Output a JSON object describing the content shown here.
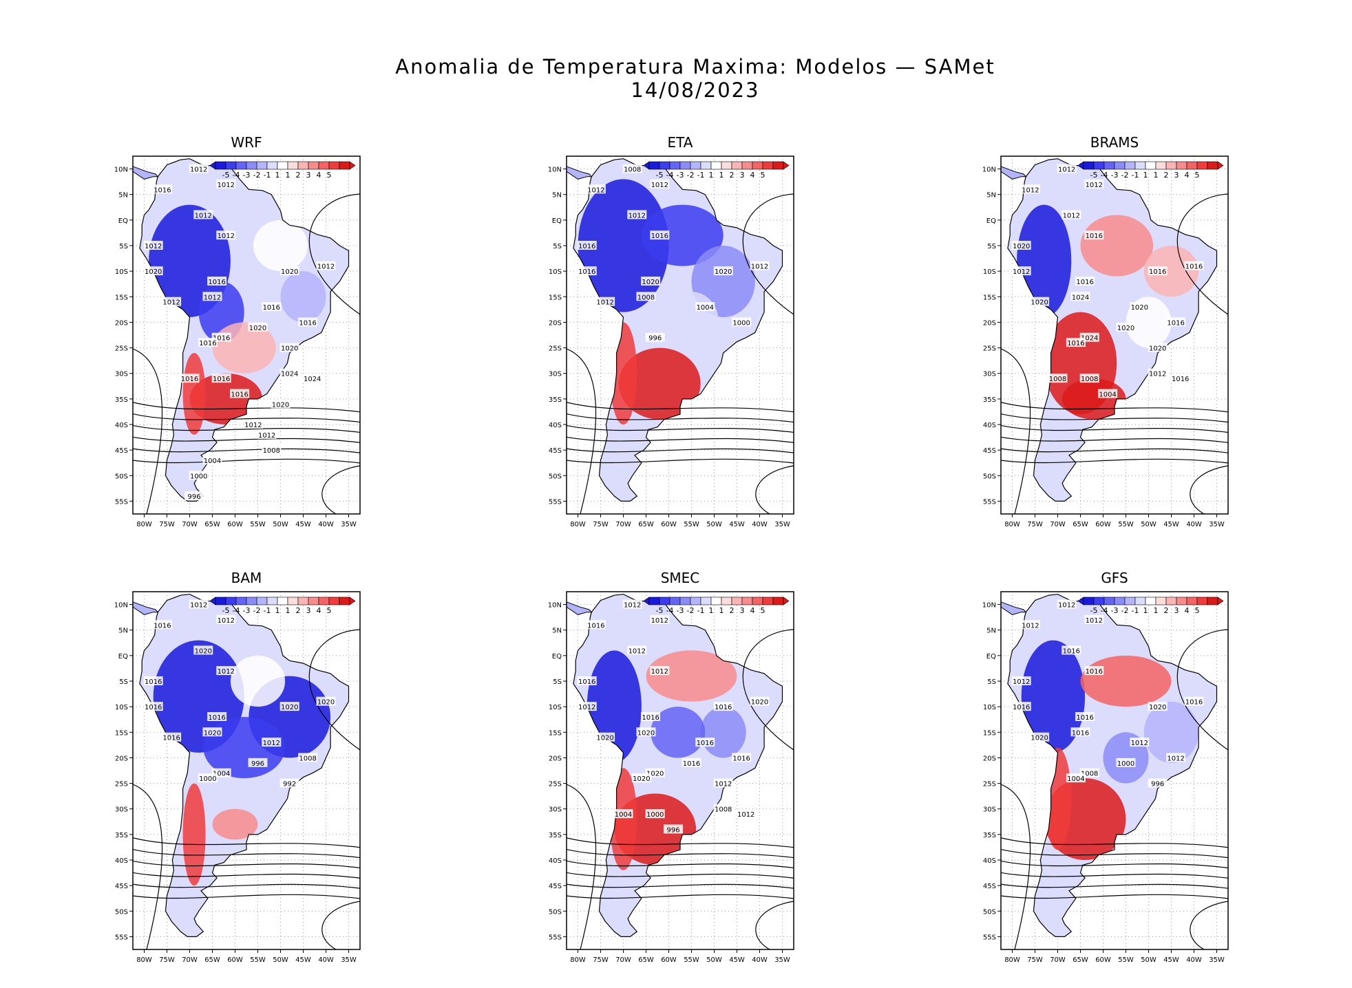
{
  "title": "Anomalia de Temperatura Maxima: Modelos — SAMet",
  "date": "14/08/2023",
  "colorbar": {
    "labels": [
      "-5",
      "-4",
      "-3",
      "-2",
      "-1",
      "1",
      "1",
      "2",
      "3",
      "4",
      "5"
    ],
    "colors": [
      "#1a1adc",
      "#3c3cf0",
      "#6464f5",
      "#8c8cf8",
      "#b4b4fb",
      "#dcdcfd",
      "#ffffff",
      "#fddcdc",
      "#fbb4b4",
      "#f88c8c",
      "#f56464",
      "#f03c3c",
      "#dc1a1a"
    ]
  },
  "axes": {
    "lat_ticks": [
      "10N",
      "5N",
      "EQ",
      "5S",
      "10S",
      "15S",
      "20S",
      "25S",
      "30S",
      "35S",
      "40S",
      "45S",
      "50S",
      "55S"
    ],
    "lon_ticks": [
      "80W",
      "75W",
      "70W",
      "65W",
      "60W",
      "55W",
      "50W",
      "45W",
      "40W",
      "35W"
    ]
  },
  "panels": [
    {
      "name": "WRF",
      "pressure_labels": [
        "1012",
        "1012",
        "1016",
        "1012",
        "1012",
        "1012",
        "1020",
        "1016",
        "1020",
        "1012",
        "1012",
        "1012",
        "1016",
        "1016",
        "1016",
        "1016",
        "1020",
        "1020",
        "1024",
        "1024",
        "1016",
        "1016",
        "1016",
        "1020",
        "1012",
        "1012",
        "1008",
        "1004",
        "1000",
        "996"
      ]
    },
    {
      "name": "ETA",
      "pressure_labels": [
        "1008",
        "1012",
        "1012",
        "1012",
        "1016",
        "1016",
        "1016",
        "1020",
        "1020",
        "1012",
        "1012",
        "1008",
        "1004",
        "1000",
        "996"
      ]
    },
    {
      "name": "BRAMS",
      "pressure_labels": [
        "1012",
        "1012",
        "1012",
        "1012",
        "1016",
        "1020",
        "1012",
        "1016",
        "1016",
        "1016",
        "1020",
        "1024",
        "1020",
        "1016",
        "1024",
        "1016",
        "1020",
        "1020",
        "1016",
        "1012",
        "1008",
        "1008",
        "1004"
      ]
    },
    {
      "name": "BAM",
      "pressure_labels": [
        "1012",
        "1012",
        "1016",
        "1020",
        "1012",
        "1016",
        "1016",
        "1016",
        "1020",
        "1020",
        "1016",
        "1020",
        "1012",
        "1008",
        "1004",
        "1000",
        "996",
        "992"
      ]
    },
    {
      "name": "SMEC",
      "pressure_labels": [
        "1012",
        "1012",
        "1016",
        "1012",
        "1012",
        "1016",
        "1012",
        "1016",
        "1016",
        "1020",
        "1020",
        "1020",
        "1016",
        "1016",
        "1020",
        "1020",
        "1016",
        "1012",
        "1012",
        "1008",
        "1004",
        "1000",
        "996"
      ]
    },
    {
      "name": "GFS",
      "pressure_labels": [
        "1012",
        "1012",
        "1012",
        "1016",
        "1016",
        "1012",
        "1016",
        "1016",
        "1020",
        "1016",
        "1020",
        "1016",
        "1012",
        "1012",
        "1008",
        "1004",
        "1000",
        "996"
      ]
    }
  ]
}
